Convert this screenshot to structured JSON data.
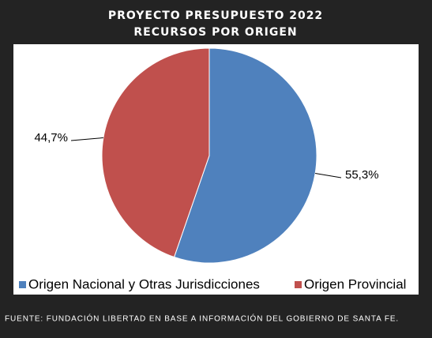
{
  "chart_data": {
    "type": "pie",
    "title": "PROYECTO PRESUPUESTO 2022",
    "subtitle": "RECURSOS POR ORIGEN",
    "categories": [
      "Origen Nacional y Otras Jurisdicciones",
      "Origen Provincial"
    ],
    "values": [
      55.3,
      44.7
    ],
    "value_labels": [
      "55,3%",
      "44,7%"
    ],
    "colors": [
      "#4f81bd",
      "#c0504d"
    ],
    "legend": "bottom",
    "source": "FUENTE: FUNDACIÓN LIBERTAD EN BASE A INFORMACIÓN DEL GOBIERNO DE SANTA FE."
  }
}
